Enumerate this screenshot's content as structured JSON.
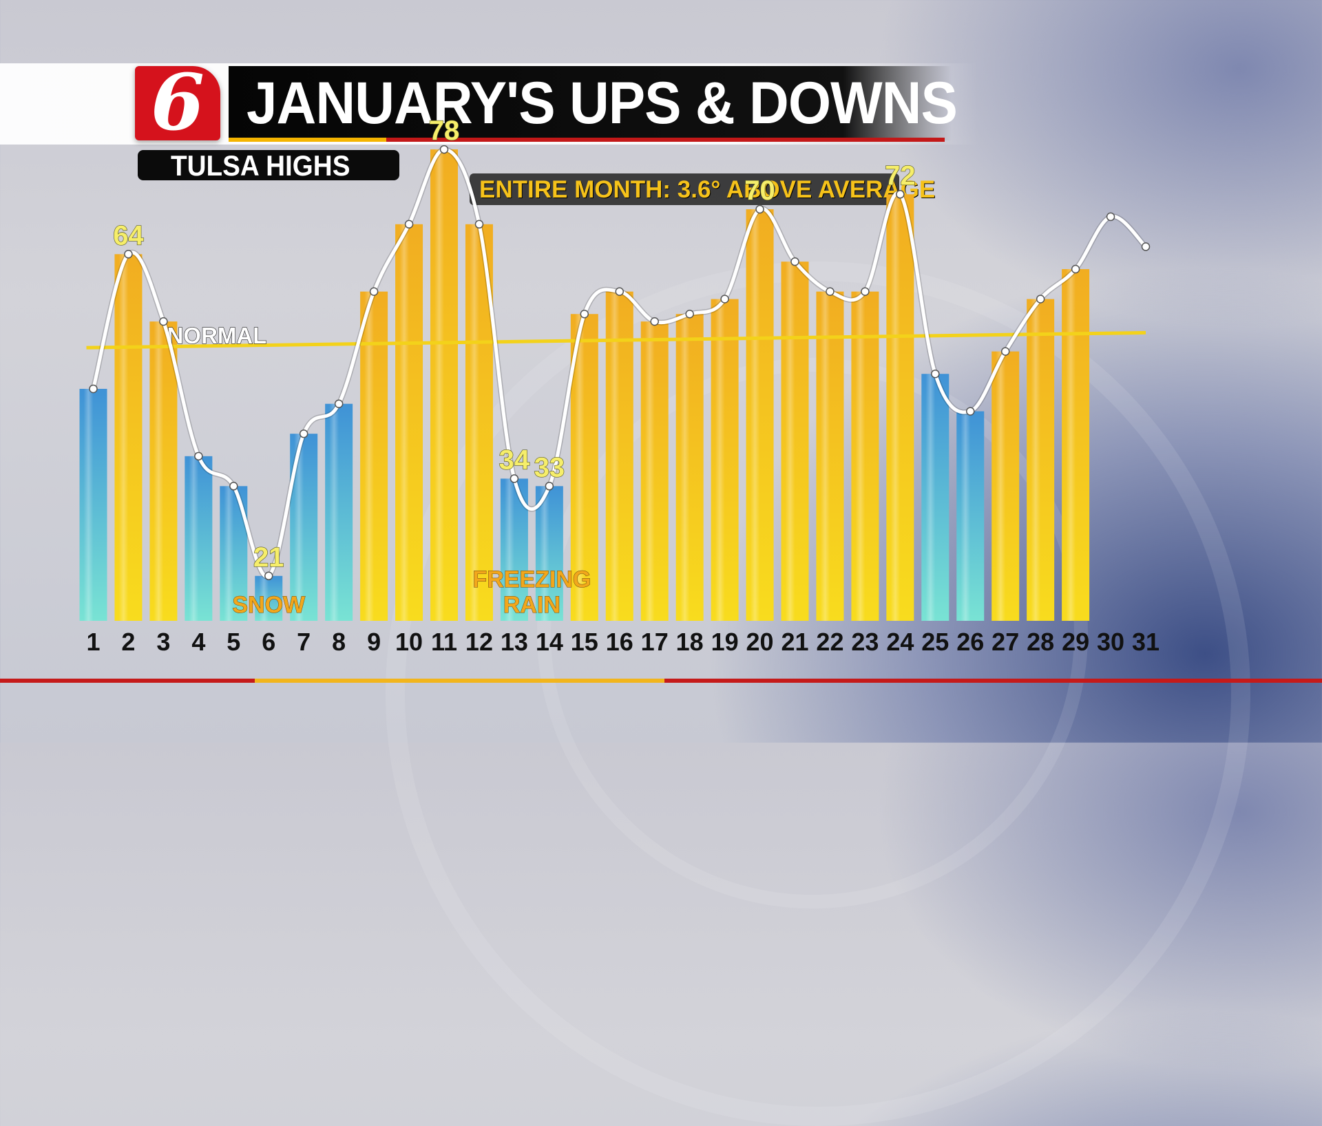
{
  "logo": {
    "glyph": "6"
  },
  "header": {
    "title": "JANUARY'S UPS & DOWNS",
    "subtitle": "TULSA HIGHS",
    "banner": "ENTIRE MONTH: 3.6° ABOVE AVERAGE"
  },
  "colors": {
    "warm_bar": "#f2b51c",
    "cold_bar": "#4aa3d9",
    "normal_line": "#f3d21a",
    "label_yellow": "#f6ee6a",
    "brand_red": "#d5121c"
  },
  "chart_data": {
    "type": "bar",
    "x": [
      1,
      2,
      3,
      4,
      5,
      6,
      7,
      8,
      9,
      10,
      11,
      12,
      13,
      14,
      15,
      16,
      17,
      18,
      19,
      20,
      21,
      22,
      23,
      24,
      25,
      26,
      27,
      28,
      29,
      30,
      31
    ],
    "values": [
      46,
      64,
      55,
      37,
      33,
      21,
      40,
      44,
      59,
      68,
      78,
      68,
      34,
      33,
      56,
      59,
      55,
      56,
      58,
      70,
      63,
      59,
      59,
      72,
      48,
      43,
      51,
      58,
      62,
      null,
      null
    ],
    "line_values": [
      46,
      64,
      55,
      37,
      33,
      21,
      40,
      44,
      59,
      68,
      78,
      68,
      34,
      33,
      56,
      59,
      55,
      56,
      58,
      70,
      63,
      59,
      59,
      72,
      48,
      43,
      51,
      58,
      62,
      69,
      65
    ],
    "bar_color_class": [
      "cold",
      "warm",
      "warm",
      "cold",
      "cold",
      "cold",
      "cold",
      "cold",
      "warm",
      "warm",
      "warm",
      "warm",
      "cold",
      "cold",
      "warm",
      "warm",
      "warm",
      "warm",
      "warm",
      "warm",
      "warm",
      "warm",
      "warm",
      "warm",
      "cold",
      "cold",
      "warm",
      "warm",
      "warm",
      null,
      null
    ],
    "normal": {
      "label": "NORMAL",
      "start": 51.5,
      "end": 53.5
    },
    "value_labels": [
      {
        "day": 2,
        "text": "64"
      },
      {
        "day": 6,
        "text": "21"
      },
      {
        "day": 11,
        "text": "78"
      },
      {
        "day": 13,
        "text": "34"
      },
      {
        "day": 14,
        "text": "33"
      },
      {
        "day": 20,
        "text": "70"
      },
      {
        "day": 24,
        "text": "72"
      }
    ],
    "annotations": [
      {
        "day": 6,
        "lines": [
          "SNOW"
        ]
      },
      {
        "day": 13.5,
        "lines": [
          "FREEZING",
          "RAIN"
        ]
      }
    ],
    "ylim": [
      15,
      82
    ]
  }
}
